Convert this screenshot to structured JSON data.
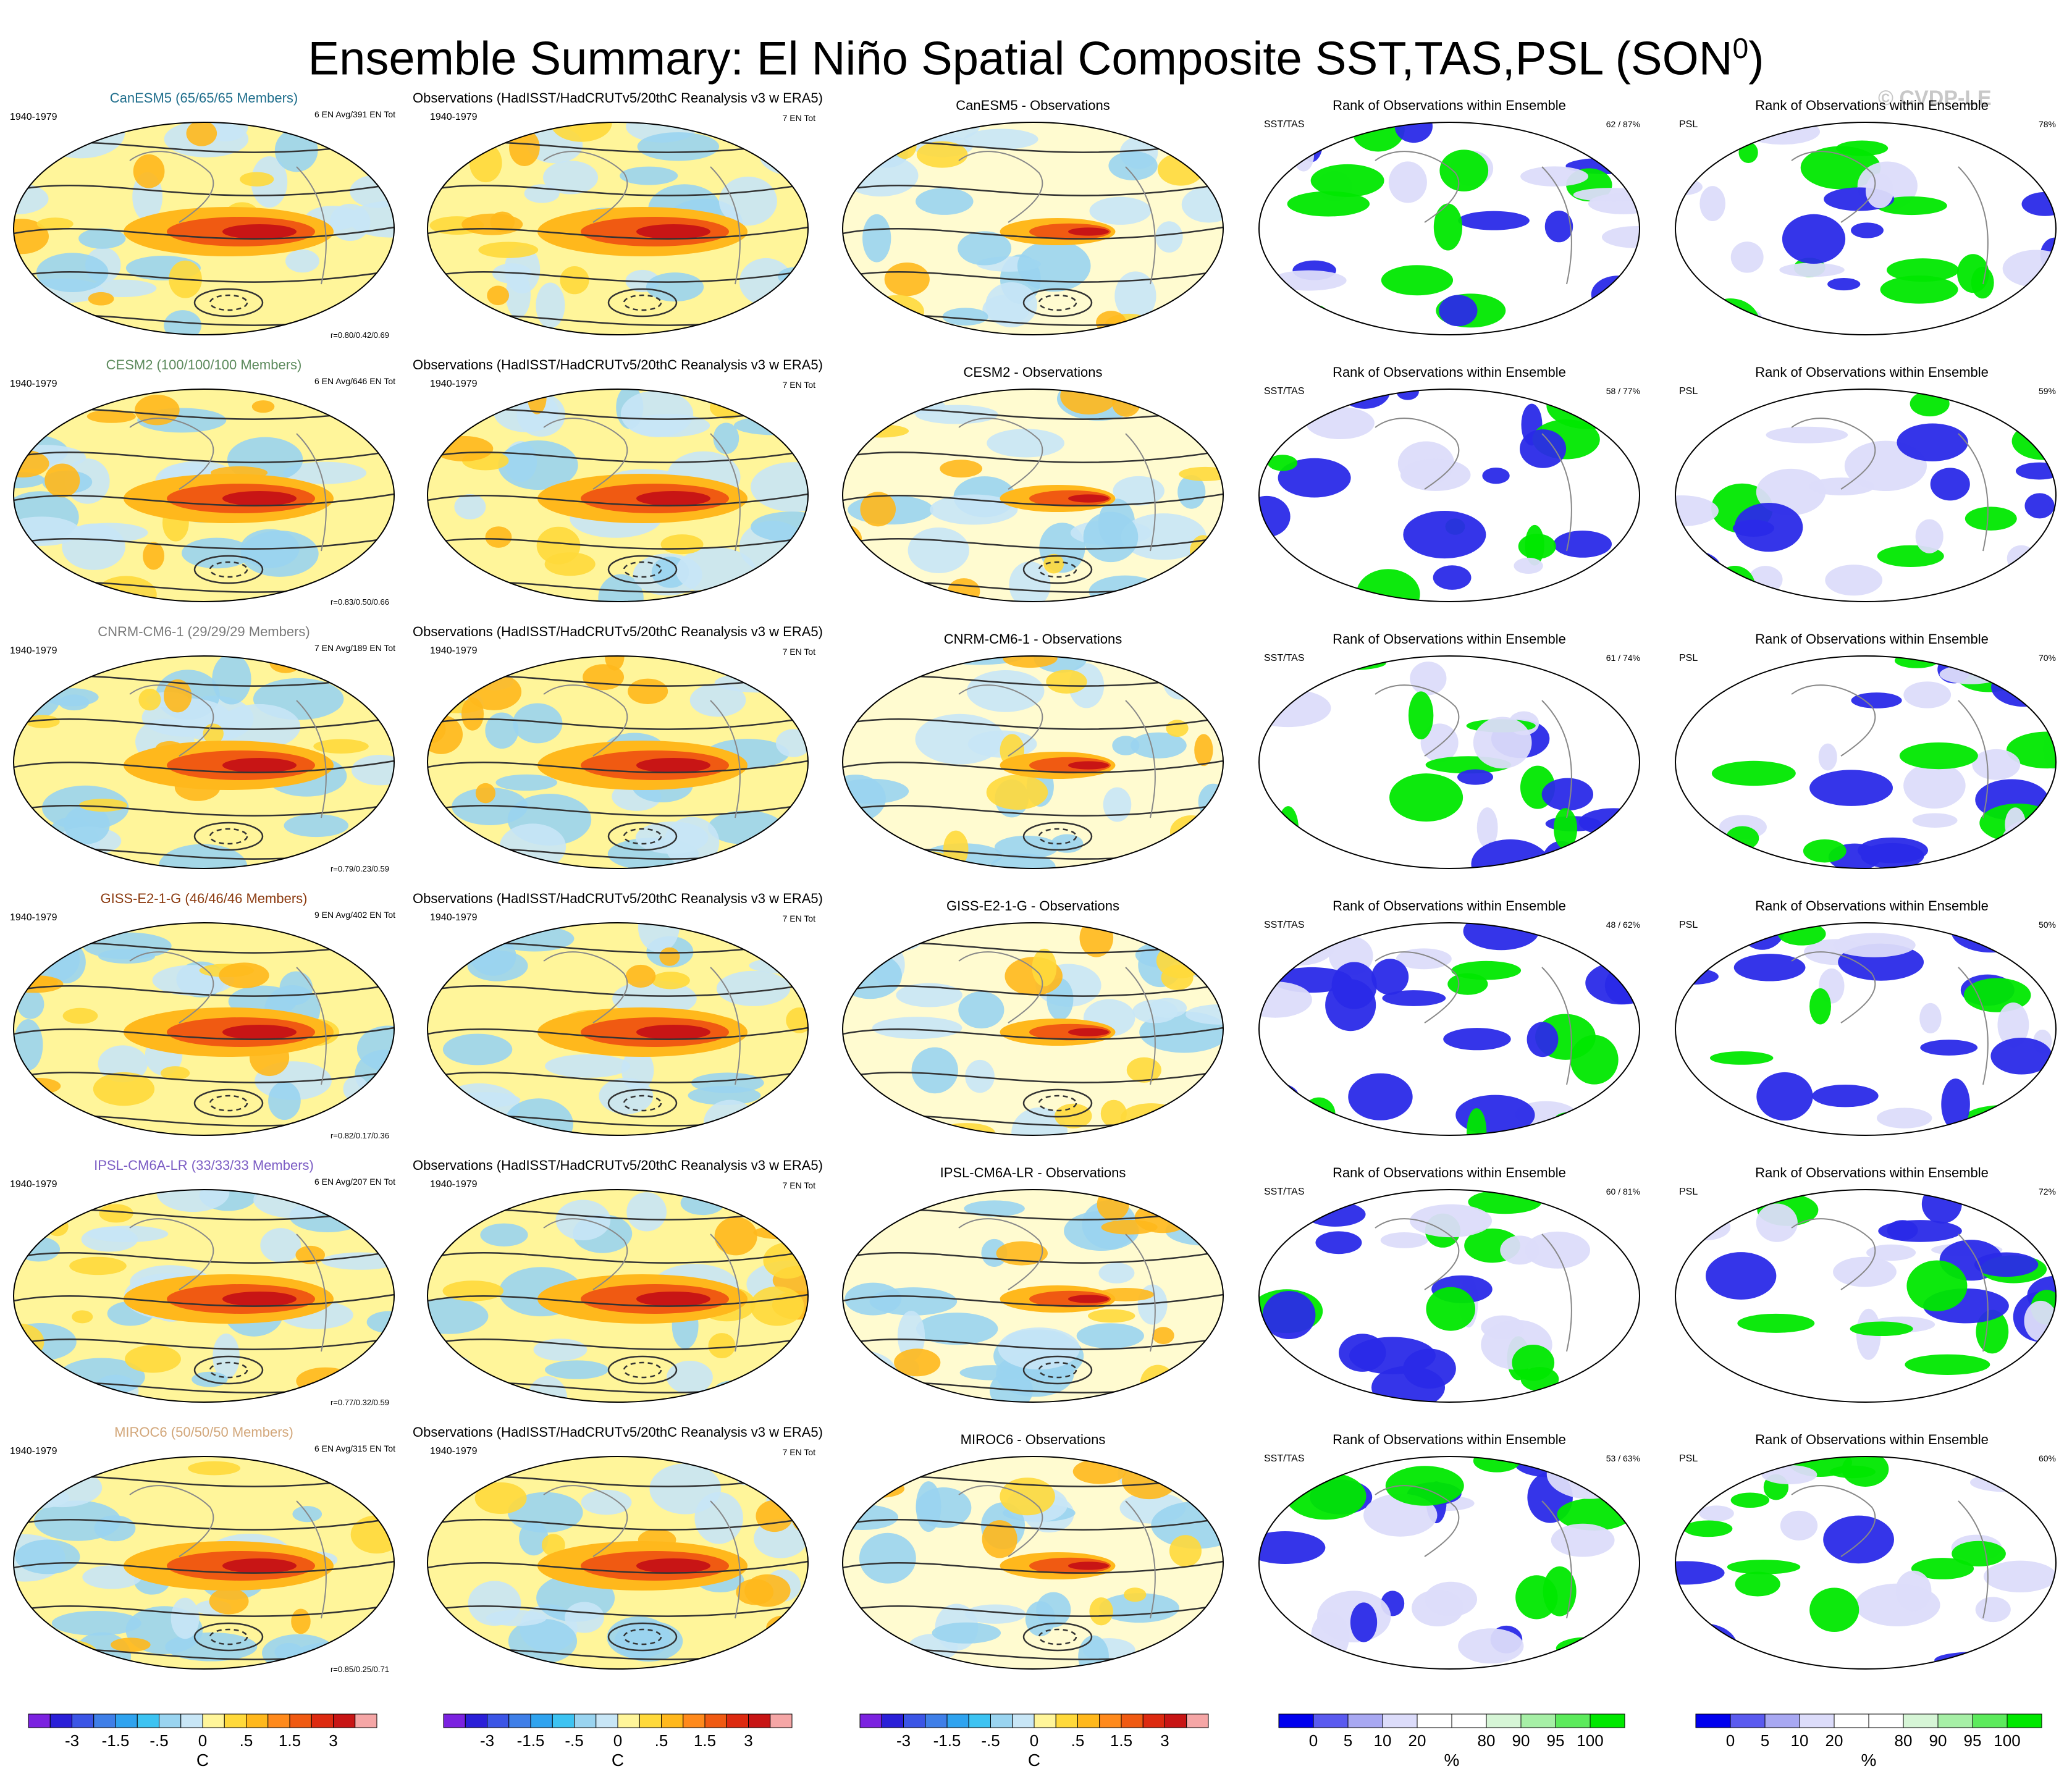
{
  "title": {
    "main": "Ensemble Summary: El Niño Spatial Composite SST,TAS,PSL (SON",
    "superscript": "0",
    "close": ")"
  },
  "watermark": "© CVDP-LE",
  "period": "1940-1979",
  "obs_title": "Observations (HadISST/HadCRUTv5/20thC Reanalysis v3 w ERA5)",
  "obs_count": "7 EN Tot",
  "rank_title": "Rank of Observations within Ensemble",
  "rank_var_sst": "SST/TAS",
  "rank_var_psl": "PSL",
  "rows": [
    {
      "model": "CanESM5 (65/65/65 Members)",
      "model_color": "#1f6e8c",
      "model_short": "CanESM5 - Observations",
      "en_info": "6 EN Avg/391 EN Tot",
      "r_values": "r=0.80/0.42/0.69",
      "sst_rank": "62 /  87%",
      "psl_rank": "78%"
    },
    {
      "model": "CESM2 (100/100/100 Members)",
      "model_color": "#5c8a5c",
      "model_short": "CESM2 - Observations",
      "en_info": "6 EN Avg/646 EN Tot",
      "r_values": "r=0.83/0.50/0.66",
      "sst_rank": "58 /  77%",
      "psl_rank": "59%"
    },
    {
      "model": "CNRM-CM6-1 (29/29/29 Members)",
      "model_color": "#7a7a7a",
      "model_short": "CNRM-CM6-1 - Observations",
      "en_info": "7 EN Avg/189 EN Tot",
      "r_values": "r=0.79/0.23/0.59",
      "sst_rank": "61 /  74%",
      "psl_rank": "70%"
    },
    {
      "model": "GISS-E2-1-G (46/46/46 Members)",
      "model_color": "#8b3a0f",
      "model_short": "GISS-E2-1-G - Observations",
      "en_info": "9 EN Avg/402 EN Tot",
      "r_values": "r=0.82/0.17/0.36",
      "sst_rank": "48 /  62%",
      "psl_rank": "50%"
    },
    {
      "model": "IPSL-CM6A-LR (33/33/33 Members)",
      "model_color": "#7b5cc4",
      "model_short": "IPSL-CM6A-LR - Observations",
      "en_info": "6 EN Avg/207 EN Tot",
      "r_values": "r=0.77/0.32/0.59",
      "sst_rank": "60 /  81%",
      "psl_rank": "72%"
    },
    {
      "model": "MIROC6 (50/50/50 Members)",
      "model_color": "#d2a679",
      "model_short": "MIROC6 - Observations",
      "en_info": "6 EN Avg/315 EN Tot",
      "r_values": "r=0.85/0.25/0.71",
      "sst_rank": "53 /  63%",
      "psl_rank": "60%"
    }
  ],
  "colorbar_temp": {
    "labels": [
      "-3",
      "-1.5",
      "-.5",
      "0",
      ".5",
      "1.5",
      "3"
    ],
    "unit": "C",
    "colors": [
      "#7b22e0",
      "#2a1fd8",
      "#3b55e6",
      "#3f7fe8",
      "#2fa3ef",
      "#3dc3f2",
      "#9ad4f0",
      "#c8e6f6",
      "#fff59a",
      "#ffd93b",
      "#ffb81c",
      "#ff8a1c",
      "#f05a12",
      "#dd2a10",
      "#c81515",
      "#f5a6a6"
    ]
  },
  "colorbar_rank": {
    "labels": [
      "0",
      "5",
      "10",
      "20",
      "80",
      "90",
      "95",
      "100"
    ],
    "unit": "%",
    "colors": [
      "#0000ee",
      "#5a5aef",
      "#a8a8f2",
      "#dcdcfa",
      "#ffffff",
      "#ffffff",
      "#d6f5d6",
      "#a6efa6",
      "#5cea5c",
      "#00e800"
    ]
  },
  "chart_data": {
    "type": "heatmap",
    "description_fields": [
      "model composite",
      "observations composite",
      "model minus observations",
      "rank SST/TAS",
      "rank PSL"
    ],
    "models": [
      "CanESM5",
      "CESM2",
      "CNRM-CM6-1",
      "GISS-E2-1-G",
      "IPSL-CM6A-LR",
      "MIROC6"
    ],
    "pattern_correlations": [
      [
        0.8,
        0.42,
        0.69
      ],
      [
        0.83,
        0.5,
        0.66
      ],
      [
        0.79,
        0.23,
        0.59
      ],
      [
        0.82,
        0.17,
        0.36
      ],
      [
        0.77,
        0.32,
        0.59
      ],
      [
        0.85,
        0.25,
        0.71
      ]
    ],
    "sst_tas_rank_percent": [
      [
        62,
        87
      ],
      [
        58,
        77
      ],
      [
        61,
        74
      ],
      [
        48,
        62
      ],
      [
        60,
        81
      ],
      [
        53,
        63
      ]
    ],
    "psl_rank_percent": [
      78,
      59,
      70,
      50,
      72,
      60
    ],
    "temp_colorbar_ticks": [
      -3,
      -1.5,
      -0.5,
      0,
      0.5,
      1.5,
      3
    ],
    "rank_colorbar_ticks": [
      0,
      5,
      10,
      20,
      80,
      90,
      95,
      100
    ]
  }
}
